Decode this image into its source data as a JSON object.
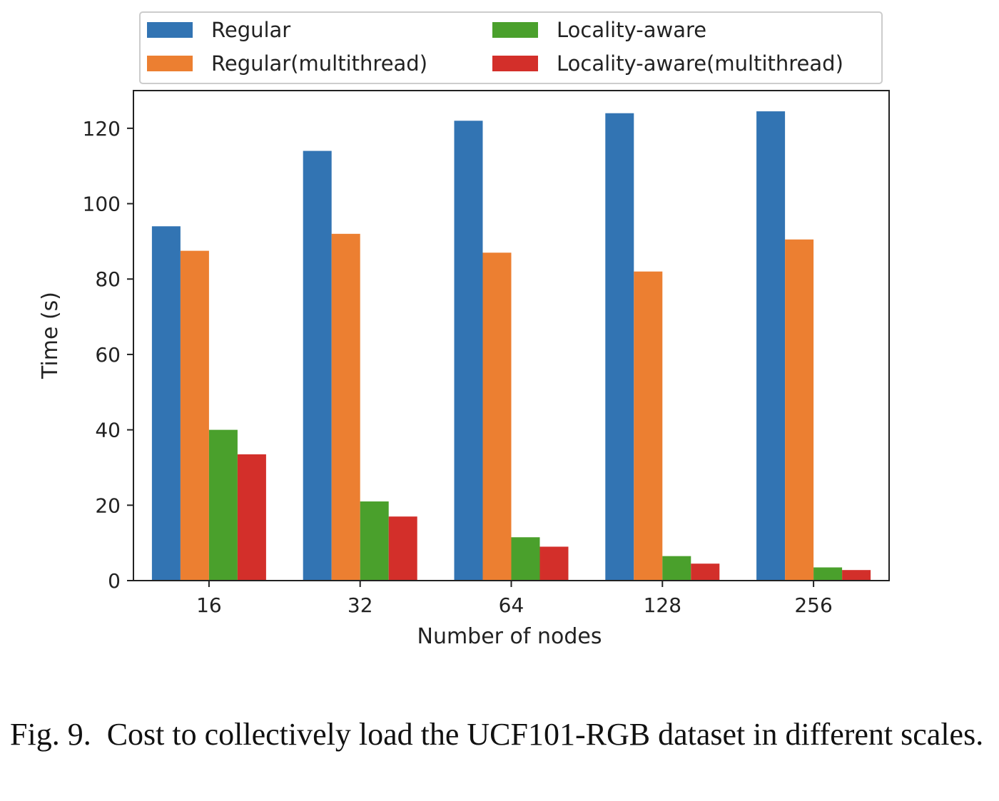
{
  "chart_data": {
    "type": "bar",
    "title": "",
    "xlabel": "Number of nodes",
    "ylabel": "Time (s)",
    "categories": [
      "16",
      "32",
      "64",
      "128",
      "256"
    ],
    "ylim": [
      0,
      130
    ],
    "yticks": [
      0,
      20,
      40,
      60,
      80,
      100,
      120
    ],
    "grid": false,
    "legend_position": "top",
    "series": [
      {
        "name": "Regular",
        "color": "#3274b3",
        "values": [
          94,
          114,
          122,
          124,
          124.5
        ]
      },
      {
        "name": "Regular(multithread)",
        "color": "#ec7f31",
        "values": [
          87.5,
          92,
          87,
          82,
          90.5
        ]
      },
      {
        "name": "Locality-aware",
        "color": "#4aa02c",
        "values": [
          40,
          21,
          11.5,
          6.5,
          3.5
        ]
      },
      {
        "name": "Locality-aware(multithread)",
        "color": "#d32f2a",
        "values": [
          33.5,
          17,
          9,
          4.5,
          2.8
        ]
      }
    ]
  },
  "caption": {
    "label": "Fig. 9.",
    "text": "Cost to collectively load the UCF101-RGB dataset in different scales."
  }
}
